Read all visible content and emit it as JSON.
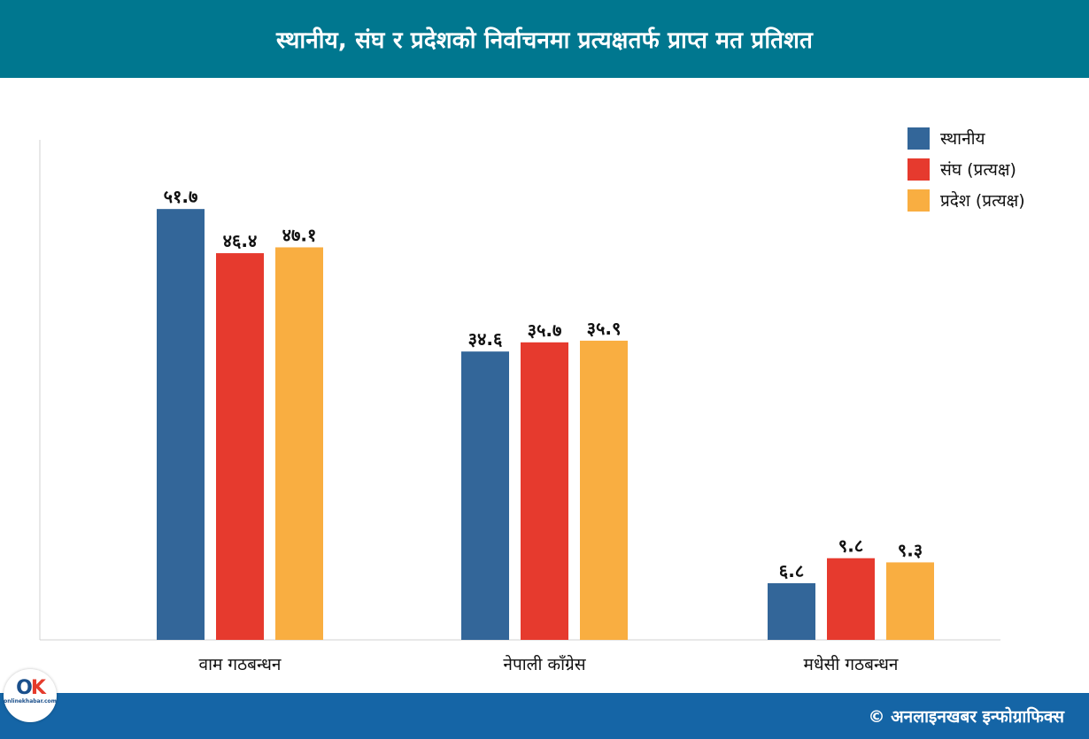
{
  "header": {
    "title": "स्थानीय, संघ र प्रदेशको निर्वाचनमा प्रत्यक्षतर्फ प्राप्त मत प्रतिशत"
  },
  "colors": {
    "header_bg": "#00778f",
    "footer_bg": "#1565a6",
    "local": "#336699",
    "federal": "#e63a2e",
    "province": "#f9ae41"
  },
  "legend": {
    "items": [
      {
        "label": "स्थानीय",
        "color": "#336699"
      },
      {
        "label": "संघ (प्रत्यक्ष)",
        "color": "#e63a2e"
      },
      {
        "label": "प्रदेश (प्रत्यक्ष)",
        "color": "#f9ae41"
      }
    ],
    "placement": "top-right"
  },
  "chart_data": {
    "type": "bar",
    "categories": [
      "वाम गठबन्धन",
      "नेपाली काँग्रेस",
      "मधेसी गठबन्धन"
    ],
    "series": [
      {
        "name": "स्थानीय",
        "values": [
          51.7,
          34.6,
          6.8
        ],
        "labels": [
          "५१.७",
          "३४.६",
          "६.८"
        ]
      },
      {
        "name": "संघ (प्रत्यक्ष)",
        "values": [
          46.4,
          35.7,
          9.8
        ],
        "labels": [
          "४६.४",
          "३५.७",
          "९.८"
        ]
      },
      {
        "name": "प्रदेश (प्रत्यक्ष)",
        "values": [
          47.1,
          35.9,
          9.3
        ],
        "labels": [
          "४७.१",
          "३५.९",
          "९.३"
        ]
      }
    ],
    "ylim": [
      0,
      60
    ],
    "grid": false,
    "title": "स्थानीय, संघ र प्रदेशको निर्वाचनमा प्रत्यक्षतर्फ प्राप्त मत प्रतिशत"
  },
  "logo": {
    "text": "onlinekhabar.com"
  },
  "footer": {
    "credit": "© अनलाइनखबर इन्फोग्राफिक्स"
  }
}
